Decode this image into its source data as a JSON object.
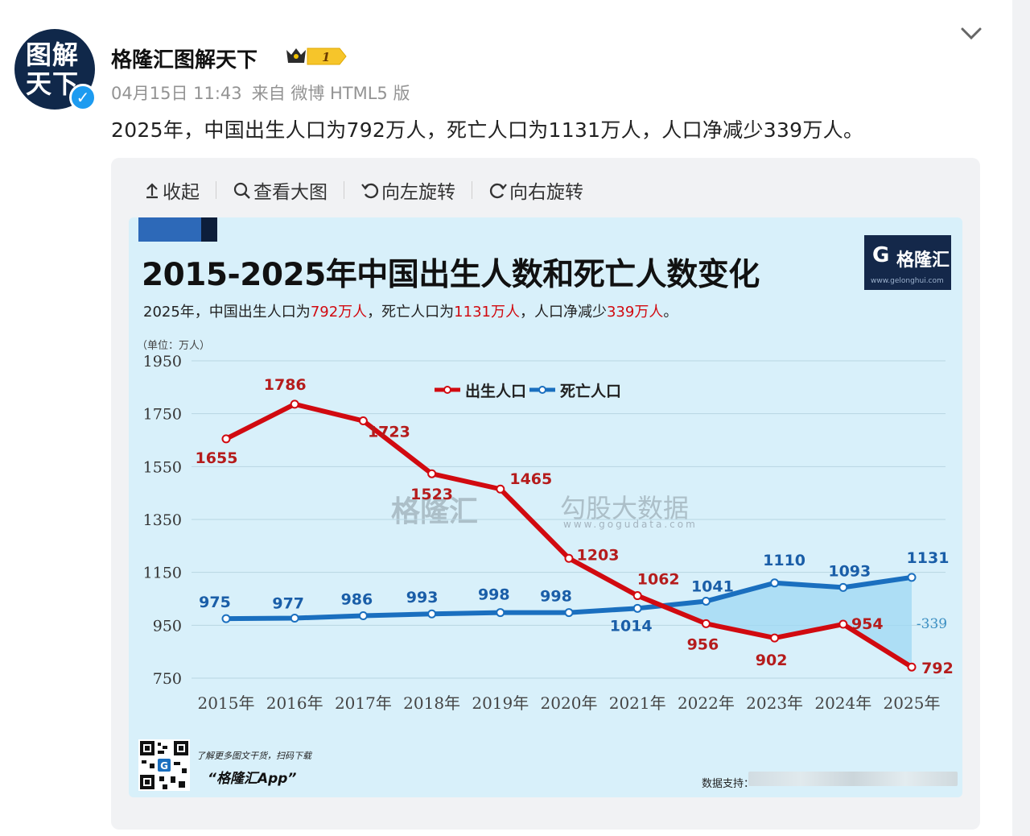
{
  "user": {
    "avatar_text_line1": "图解",
    "avatar_text_line2": "天下",
    "name": "格隆汇图解天下",
    "badge_level": "1"
  },
  "meta": {
    "date": "04月15日 11:43",
    "source": "来自 微博 HTML5 版"
  },
  "post": {
    "text": "2025年，中国出生人口为792万人，死亡人口为1131万人，人口净减少339万人。"
  },
  "toolbar": {
    "collapse_label": "收起",
    "view_large_label": "查看大图",
    "rotate_left_label": "向左旋转",
    "rotate_right_label": "向右旋转"
  },
  "image": {
    "logo_text": "格隆汇",
    "logo_url": "www.gelonghui.com",
    "unit_label": "（单位：万人）",
    "subtitle_parts": [
      "2025年，中国出生人口为",
      "792万人",
      "，死亡人口为",
      "1131万人",
      "，人口净减少",
      "339万人",
      "。"
    ],
    "watermark_left": "格隆汇",
    "watermark_right": "勾股大数据",
    "watermark_url": "www.gogudata.com",
    "footer_note": "了解更多图文干货，扫码下载",
    "footer_app": "“格隆汇App”",
    "footer_data_source": "数据支持："
  },
  "colors": {
    "birth": "#d10a10",
    "death": "#1a6fbf",
    "chart_bg": "#d8f0fa"
  },
  "chart_data": {
    "type": "line",
    "title": "2015-2025年中国出生人数和死亡人数变化",
    "categories": [
      "2015年",
      "2016年",
      "2017年",
      "2018年",
      "2019年",
      "2020年",
      "2021年",
      "2022年",
      "2023年",
      "2024年",
      "2025年"
    ],
    "series": [
      {
        "name": "出生人口",
        "values": [
          1655,
          1786,
          1723,
          1523,
          1465,
          1203,
          1062,
          956,
          902,
          954,
          792
        ]
      },
      {
        "name": "死亡人口",
        "values": [
          975,
          977,
          986,
          993,
          998,
          998,
          1014,
          1041,
          1110,
          1093,
          1131
        ]
      }
    ],
    "net_change_label": "-339",
    "yticks": [
      750,
      950,
      1150,
      1350,
      1550,
      1750,
      1950
    ],
    "ylim": [
      750,
      1950
    ],
    "grid": true,
    "legend": "top-center"
  }
}
